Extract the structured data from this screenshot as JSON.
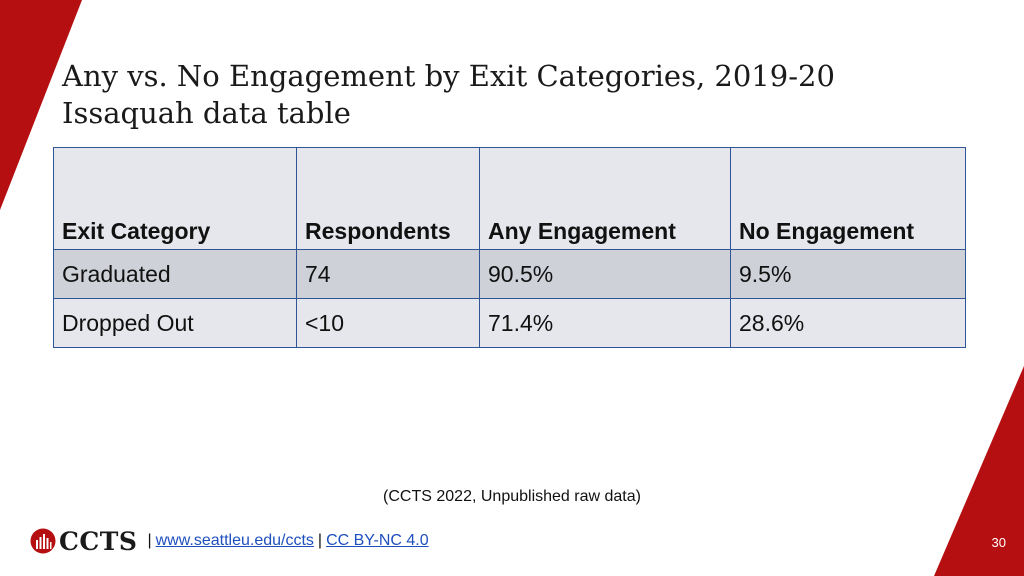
{
  "title": {
    "line1": "Any vs. No Engagement by Exit Categories, 2019-20",
    "line2": "Issaquah data table"
  },
  "table": {
    "headers": [
      "Exit Category",
      "Respondents",
      "Any Engagement",
      "No Engagement"
    ],
    "rows": [
      [
        "Graduated",
        "74",
        "90.5%",
        "9.5%"
      ],
      [
        "Dropped Out",
        "<10",
        "71.4%",
        "28.6%"
      ]
    ]
  },
  "source_note": "(CCTS 2022, Unpublished raw data)",
  "footer": {
    "logo_text": "CCTS",
    "separator": "|",
    "link_url_text": "www.seattleu.edu/ccts",
    "license_text": "CC BY-NC 4.0"
  },
  "page_number": "30",
  "colors": {
    "accent_red": "#b50f12",
    "table_border": "#2f5597",
    "link": "#1f4fbf"
  }
}
